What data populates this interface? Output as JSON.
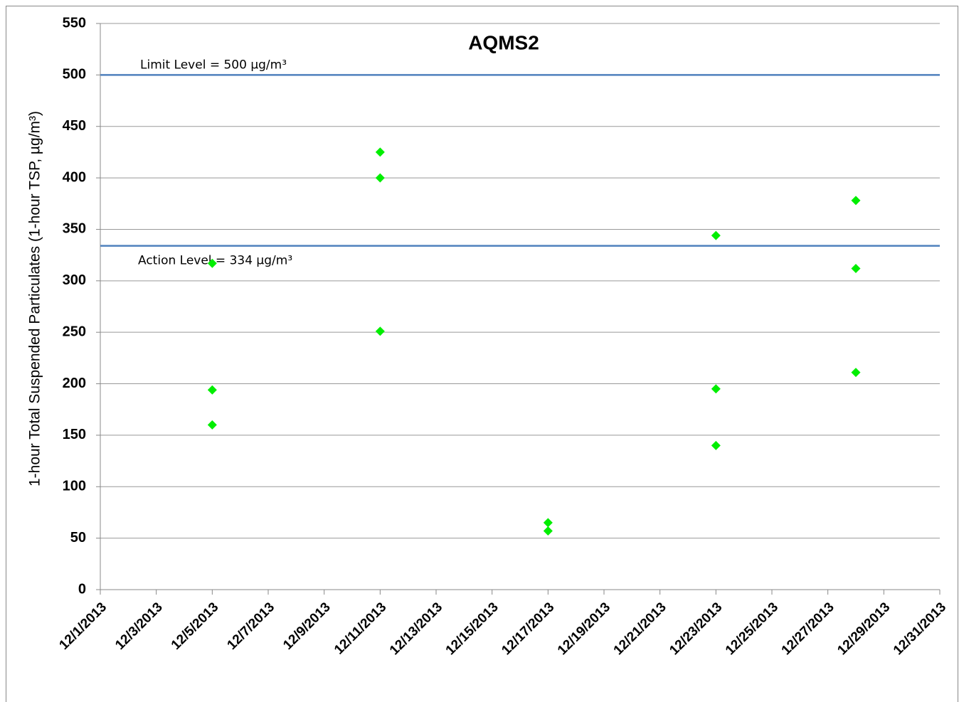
{
  "chart_data": {
    "type": "scatter",
    "title": "AQMS2",
    "y_label": "1-hour Total Suspended Particulates (1-hour TSP, µg/m³)",
    "series": [
      {
        "name": "AQMS2",
        "color": "#00ee00",
        "x": [
          "12/5/2013",
          "12/5/2013",
          "12/5/2013",
          "12/11/2013",
          "12/11/2013",
          "12/11/2013",
          "12/17/2013",
          "12/17/2013",
          "12/23/2013",
          "12/23/2013",
          "12/23/2013",
          "12/28/2013",
          "12/28/2013",
          "12/28/2013"
        ],
        "values": [
          317,
          194,
          160,
          425,
          400,
          251,
          65,
          57,
          344,
          195,
          140,
          378,
          312,
          211
        ]
      }
    ],
    "reference_lines": [
      {
        "label": "Limit Level = 500 µg/m³",
        "value": 500,
        "color": "#4f81bd"
      },
      {
        "label": "Action Level = 334 µg/m³",
        "value": 334,
        "color": "#4f81bd"
      }
    ],
    "xlim": [
      "12/1/2013",
      "12/31/2013"
    ],
    "xticks": [
      "12/1/2013",
      "12/3/2013",
      "12/5/2013",
      "12/7/2013",
      "12/9/2013",
      "12/11/2013",
      "12/13/2013",
      "12/15/2013",
      "12/17/2013",
      "12/19/2013",
      "12/21/2013",
      "12/23/2013",
      "12/25/2013",
      "12/27/2013",
      "12/29/2013",
      "12/31/2013"
    ],
    "ylim": [
      0,
      550
    ],
    "yticks": [
      0,
      50,
      100,
      150,
      200,
      250,
      300,
      350,
      400,
      450,
      500,
      550
    ],
    "grid": true
  }
}
